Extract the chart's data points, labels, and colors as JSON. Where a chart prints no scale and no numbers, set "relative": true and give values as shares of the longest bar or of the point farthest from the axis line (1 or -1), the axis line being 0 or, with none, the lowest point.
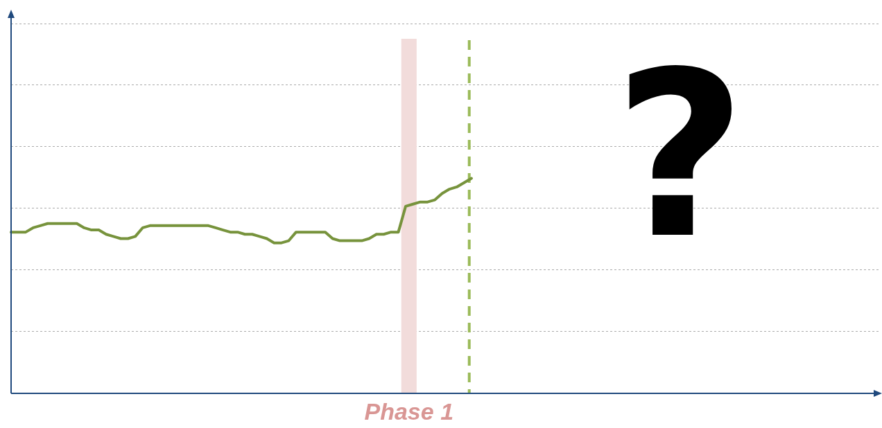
{
  "chart_data": {
    "type": "line",
    "relative": true,
    "grid": "y",
    "line_style": "solid",
    "marker": "none",
    "categories": [
      null,
      null,
      null,
      null,
      null,
      null,
      null,
      null,
      null,
      null,
      null,
      null,
      null,
      null,
      null,
      null,
      null,
      null,
      null,
      null,
      null,
      null,
      null,
      null,
      null,
      null,
      null,
      null,
      null,
      null,
      null,
      null,
      null,
      null,
      null,
      null,
      null,
      null,
      null,
      null,
      null,
      null,
      null,
      null,
      null,
      null,
      null,
      null,
      null,
      null,
      null,
      null,
      null,
      null,
      null,
      null,
      null,
      null,
      null,
      null,
      null,
      null,
      null,
      null,
      null,
      null,
      null,
      null,
      null,
      null,
      null,
      null,
      null,
      null,
      null,
      null,
      null,
      null,
      null,
      null,
      null,
      null,
      null,
      null,
      null,
      null,
      null,
      null,
      null,
      null,
      null,
      null,
      null,
      null,
      null,
      null,
      null,
      null,
      null,
      null,
      null,
      null,
      null,
      null,
      null,
      null,
      null,
      null,
      null,
      null,
      null,
      null,
      null,
      null,
      null,
      null,
      null,
      null,
      null,
      null
    ],
    "series": [
      {
        "color": "#77933c",
        "values": [
          0.75,
          0.75,
          0.75,
          0.77,
          0.78,
          0.79,
          0.79,
          0.79,
          0.79,
          0.79,
          0.77,
          0.76,
          0.76,
          0.74,
          0.73,
          0.72,
          0.72,
          0.73,
          0.77,
          0.78,
          0.78,
          0.78,
          0.78,
          0.78,
          0.78,
          0.78,
          0.78,
          0.78,
          0.77,
          0.76,
          0.75,
          0.75,
          0.74,
          0.74,
          0.73,
          0.72,
          0.7,
          0.7,
          0.71,
          0.75,
          0.75,
          0.75,
          0.75,
          0.75,
          0.72,
          0.71,
          0.71,
          0.71,
          0.71,
          0.72,
          0.74,
          0.74,
          0.75,
          0.75,
          0.87,
          0.88,
          0.89,
          0.89,
          0.9,
          0.93,
          0.95,
          0.96,
          0.98,
          1.0,
          null,
          null,
          null,
          null,
          null,
          null,
          null,
          null,
          null,
          null,
          null,
          null,
          null,
          null,
          null,
          null,
          null,
          null,
          null,
          null,
          null,
          null,
          null,
          null,
          null,
          null,
          null,
          null,
          null,
          null,
          null,
          null,
          null,
          null,
          null,
          null,
          null,
          null,
          null,
          null,
          null,
          null,
          null,
          null,
          null,
          null,
          null,
          null,
          null,
          null,
          null,
          null,
          null,
          null,
          null,
          null
        ]
      }
    ],
    "annotations": [
      "Phase 1",
      "?"
    ]
  }
}
